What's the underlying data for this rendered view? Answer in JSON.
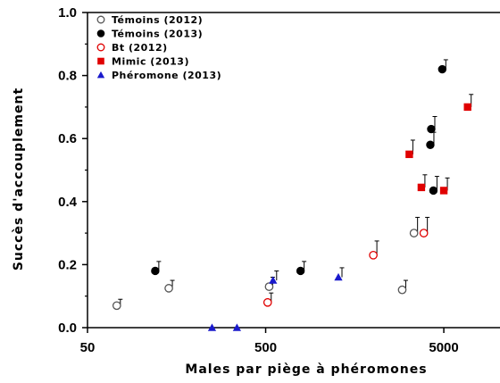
{
  "chart_data": {
    "type": "scatter",
    "xlabel": "Males par piège à phéromones",
    "ylabel": "Succès d'accouplement",
    "xscale": "log",
    "xlim": [
      50,
      9000
    ],
    "ylim": [
      0,
      1.0
    ],
    "xticks": [
      50,
      500,
      5000
    ],
    "xtick_labels": [
      "50",
      "500",
      "5000"
    ],
    "yticks": [
      0,
      0.2,
      0.4,
      0.6,
      0.8,
      1.0
    ],
    "ytick_labels": [
      "0.0",
      "0.2",
      "0.4",
      "0.6",
      "0.8",
      "1.0"
    ],
    "legend_position": "top-left",
    "series": [
      {
        "name": "Témoins (2012)",
        "marker": "circle-open",
        "color": "#555555",
        "points": [
          {
            "x": 73,
            "y": 0.07,
            "err": 0.02
          },
          {
            "x": 143,
            "y": 0.125,
            "err": 0.025
          },
          {
            "x": 523,
            "y": 0.13,
            "err": 0.03
          },
          {
            "x": 2920,
            "y": 0.12,
            "err": 0.03
          },
          {
            "x": 3400,
            "y": 0.3,
            "err": 0.05
          }
        ]
      },
      {
        "name": "Témoins (2013)",
        "marker": "circle-filled",
        "color": "#000000",
        "points": [
          {
            "x": 120,
            "y": 0.18,
            "err": 0.03
          },
          {
            "x": 785,
            "y": 0.18,
            "err": 0.03
          },
          {
            "x": 4200,
            "y": 0.58,
            "err": 0.04
          },
          {
            "x": 4250,
            "y": 0.63,
            "err": 0.04
          },
          {
            "x": 4370,
            "y": 0.435,
            "err": 0.045
          },
          {
            "x": 4900,
            "y": 0.82,
            "err": 0.03
          }
        ]
      },
      {
        "name": "Bt (2012)",
        "marker": "circle-open",
        "color": "#e00000",
        "points": [
          {
            "x": 513,
            "y": 0.08,
            "err": 0.03
          },
          {
            "x": 2010,
            "y": 0.23,
            "err": 0.045
          },
          {
            "x": 3860,
            "y": 0.3,
            "err": 0.05
          }
        ]
      },
      {
        "name": "Mimic (2013)",
        "marker": "square-filled",
        "color": "#e00000",
        "points": [
          {
            "x": 3200,
            "y": 0.55,
            "err": 0.045
          },
          {
            "x": 3740,
            "y": 0.445,
            "err": 0.04
          },
          {
            "x": 5000,
            "y": 0.435,
            "err": 0.04
          },
          {
            "x": 6800,
            "y": 0.7,
            "err": 0.04
          }
        ]
      },
      {
        "name": "Phéromone (2013)",
        "marker": "triangle-filled",
        "color": "#1a1acc",
        "points": [
          {
            "x": 250,
            "y": 0.0,
            "err": 0
          },
          {
            "x": 345,
            "y": 0.0,
            "err": 0
          },
          {
            "x": 550,
            "y": 0.15,
            "err": 0.03
          },
          {
            "x": 1280,
            "y": 0.16,
            "err": 0.03
          }
        ]
      }
    ]
  }
}
